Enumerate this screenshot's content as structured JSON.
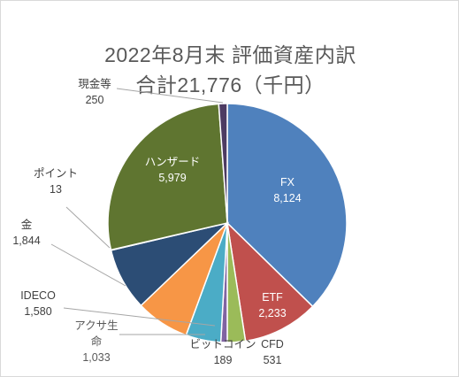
{
  "chart_data": {
    "type": "pie",
    "title": "2022年8月末 評価資産内訳",
    "subtitle": "合計21,776（千円）",
    "start_angle_deg": 0,
    "direction": "clockwise",
    "slices": [
      {
        "label": "FX",
        "value": 8124,
        "value_text": "8,124",
        "color": "#4f81bd"
      },
      {
        "label": "ETF",
        "value": 2233,
        "value_text": "2,233",
        "color": "#c0504d"
      },
      {
        "label": "CFD",
        "value": 531,
        "value_text": "531",
        "color": "#9bbb59"
      },
      {
        "label": "ビットコイン",
        "value": 189,
        "value_text": "189",
        "color": "#8064a2"
      },
      {
        "label": "アクサ生命",
        "label_lines": [
          "アクサ生",
          "命"
        ],
        "value": 1033,
        "value_text": "1,033",
        "color": "#4bacc6"
      },
      {
        "label": "IDECO",
        "value": 1580,
        "value_text": "1,580",
        "color": "#f79646"
      },
      {
        "label": "金",
        "value": 1844,
        "value_text": "1,844",
        "color": "#2c4d75"
      },
      {
        "label": "ポイント",
        "value": 13,
        "value_text": "13",
        "color": "#772c2a"
      },
      {
        "label": "ハンザード",
        "value": 5979,
        "value_text": "5,979",
        "color": "#5f7530"
      },
      {
        "label": "現金等",
        "value": 250,
        "value_text": "250",
        "color": "#4d3b62"
      }
    ],
    "legend": "none",
    "data_labels": "category and value"
  }
}
